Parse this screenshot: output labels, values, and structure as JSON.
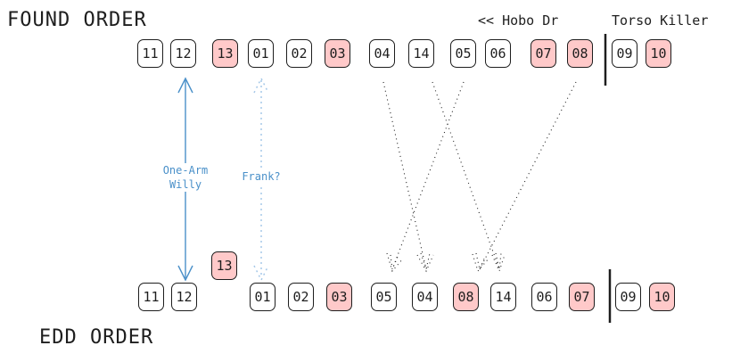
{
  "headings": {
    "found_order": "FOUND ORDER",
    "edd_order": "EDD ORDER"
  },
  "notes": {
    "hobo": "<< Hobo Dr",
    "torso": "Torso Killer"
  },
  "found_row": [
    {
      "label": "11",
      "hl": false
    },
    {
      "label": "12",
      "hl": false
    },
    {
      "label": "13",
      "hl": true
    },
    {
      "label": "01",
      "hl": false
    },
    {
      "label": "02",
      "hl": false
    },
    {
      "label": "03",
      "hl": true
    },
    {
      "label": "04",
      "hl": false
    },
    {
      "label": "14",
      "hl": false
    },
    {
      "label": "05",
      "hl": false
    },
    {
      "label": "06",
      "hl": false
    },
    {
      "label": "07",
      "hl": true
    },
    {
      "label": "08",
      "hl": true
    },
    {
      "label": "09",
      "hl": false
    },
    {
      "label": "10",
      "hl": true
    }
  ],
  "edd_row": [
    {
      "label": "11",
      "hl": false
    },
    {
      "label": "12",
      "hl": false
    },
    {
      "label": "01",
      "hl": false
    },
    {
      "label": "02",
      "hl": false
    },
    {
      "label": "03",
      "hl": true
    },
    {
      "label": "05",
      "hl": false
    },
    {
      "label": "04",
      "hl": false
    },
    {
      "label": "08",
      "hl": true
    },
    {
      "label": "14",
      "hl": false
    },
    {
      "label": "06",
      "hl": false
    },
    {
      "label": "07",
      "hl": true
    },
    {
      "label": "09",
      "hl": false
    },
    {
      "label": "10",
      "hl": true
    }
  ],
  "floating_box": {
    "label": "13",
    "hl": true
  },
  "arrow_labels": {
    "willy": "One-Arm\nWilly",
    "frank": "Frank?"
  },
  "colors": {
    "highlight": "#ffc9c9",
    "stroke": "#1e1e1e",
    "arrow": "#4a90c9",
    "arrow_light": "#a5c8e8"
  }
}
